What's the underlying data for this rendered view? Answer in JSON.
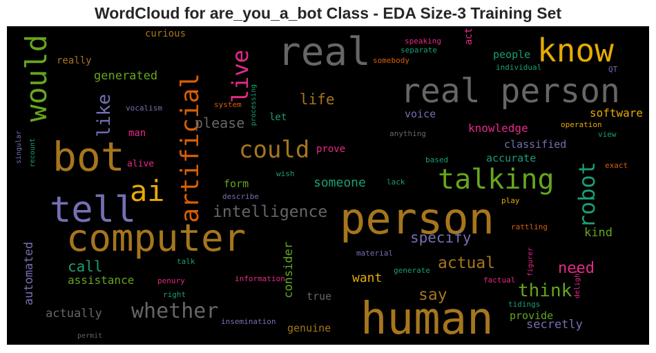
{
  "chart_data": {
    "type": "wordcloud",
    "title": "WordCloud for are_you_a_bot Class - EDA Size-3 Training Set",
    "colors": {
      "gray": "#666666",
      "gold": "#a6761d",
      "amber": "#e6ab02",
      "green": "#66a61e",
      "orange": "#d95f02",
      "teal": "#1b9e77",
      "magenta": "#e7298a",
      "purple": "#7570b3"
    },
    "words": [
      {
        "text": "human",
        "color": "gold",
        "weight": 64
      },
      {
        "text": "person",
        "color": "gold",
        "weight": 62
      },
      {
        "text": "computer",
        "color": "gold",
        "weight": 54
      },
      {
        "text": "bot",
        "color": "gold",
        "weight": 58
      },
      {
        "text": "real",
        "color": "gray",
        "weight": 56
      },
      {
        "text": "real person",
        "color": "gray",
        "weight": 48
      },
      {
        "text": "tell",
        "color": "purple",
        "weight": 52
      },
      {
        "text": "know",
        "color": "amber",
        "weight": 46
      },
      {
        "text": "ai",
        "color": "amber",
        "weight": 42
      },
      {
        "text": "talking",
        "color": "green",
        "weight": 40
      },
      {
        "text": "would",
        "color": "green",
        "weight": 42,
        "rotate": true
      },
      {
        "text": "artificial",
        "color": "orange",
        "weight": 36,
        "rotate": true
      },
      {
        "text": "could",
        "color": "gold",
        "weight": 34
      },
      {
        "text": "robot",
        "color": "teal",
        "weight": 32,
        "rotate": true
      },
      {
        "text": "live",
        "color": "magenta",
        "weight": 32,
        "rotate": true
      },
      {
        "text": "whether",
        "color": "gray",
        "weight": 30
      },
      {
        "text": "think",
        "color": "green",
        "weight": 26
      },
      {
        "text": "like",
        "color": "purple",
        "weight": 26,
        "rotate": true
      },
      {
        "text": "intelligence",
        "color": "gray",
        "weight": 23
      },
      {
        "text": "actual",
        "color": "gold",
        "weight": 23
      },
      {
        "text": "say",
        "color": "gold",
        "weight": 23
      },
      {
        "text": "need",
        "color": "magenta",
        "weight": 22
      },
      {
        "text": "specify",
        "color": "purple",
        "weight": 21
      },
      {
        "text": "call",
        "color": "teal",
        "weight": 21
      },
      {
        "text": "life",
        "color": "gold",
        "weight": 21
      },
      {
        "text": "please",
        "color": "gray",
        "weight": 20
      },
      {
        "text": "someone",
        "color": "teal",
        "weight": 18
      },
      {
        "text": "consider",
        "color": "green",
        "weight": 17,
        "rotate": true
      },
      {
        "text": "want",
        "color": "amber",
        "weight": 18
      },
      {
        "text": "automated",
        "color": "purple",
        "weight": 17,
        "rotate": true
      },
      {
        "text": "actually",
        "color": "gray",
        "weight": 17
      },
      {
        "text": "secretly",
        "color": "purple",
        "weight": 17
      },
      {
        "text": "generated",
        "color": "green",
        "weight": 17
      },
      {
        "text": "software",
        "color": "amber",
        "weight": 16
      },
      {
        "text": "kind",
        "color": "green",
        "weight": 17
      },
      {
        "text": "knowledge",
        "color": "magenta",
        "weight": 16
      },
      {
        "text": "assistance",
        "color": "green",
        "weight": 16
      },
      {
        "text": "people",
        "color": "teal",
        "weight": 15
      },
      {
        "text": "accurate",
        "color": "teal",
        "weight": 15
      },
      {
        "text": "classified",
        "color": "purple",
        "weight": 15
      },
      {
        "text": "provide",
        "color": "green",
        "weight": 15
      },
      {
        "text": "genuine",
        "color": "gold",
        "weight": 15
      },
      {
        "text": "form",
        "color": "green",
        "weight": 15
      },
      {
        "text": "true",
        "color": "gray",
        "weight": 15
      },
      {
        "text": "voice",
        "color": "purple",
        "weight": 15
      },
      {
        "text": "really",
        "color": "gold",
        "weight": 14
      },
      {
        "text": "curious",
        "color": "gold",
        "weight": 14
      },
      {
        "text": "man",
        "color": "magenta",
        "weight": 14
      },
      {
        "text": "let",
        "color": "teal",
        "weight": 14
      },
      {
        "text": "prove",
        "color": "magenta",
        "weight": 14
      },
      {
        "text": "act",
        "color": "magenta",
        "weight": 14,
        "rotate": true
      },
      {
        "text": "alive",
        "color": "magenta",
        "weight": 13
      },
      {
        "text": "speaking",
        "color": "magenta",
        "weight": 11
      },
      {
        "text": "separate",
        "color": "teal",
        "weight": 11
      },
      {
        "text": "somebody",
        "color": "orange",
        "weight": 11
      },
      {
        "text": "individual",
        "color": "teal",
        "weight": 11
      },
      {
        "text": "QT",
        "color": "purple",
        "weight": 11
      },
      {
        "text": "vocalism",
        "color": "purple",
        "weight": 11
      },
      {
        "text": "system",
        "color": "orange",
        "weight": 11
      },
      {
        "text": "processing",
        "color": "teal",
        "weight": 10,
        "rotate": true
      },
      {
        "text": "operation",
        "color": "amber",
        "weight": 11
      },
      {
        "text": "view",
        "color": "teal",
        "weight": 11
      },
      {
        "text": "anything",
        "color": "gray",
        "weight": 11
      },
      {
        "text": "singular",
        "color": "purple",
        "weight": 10,
        "rotate": true
      },
      {
        "text": "recount",
        "color": "teal",
        "weight": 10,
        "rotate": true
      },
      {
        "text": "based",
        "color": "teal",
        "weight": 11
      },
      {
        "text": "exact",
        "color": "orange",
        "weight": 11
      },
      {
        "text": "wish",
        "color": "teal",
        "weight": 11
      },
      {
        "text": "lack",
        "color": "teal",
        "weight": 11
      },
      {
        "text": "describe",
        "color": "purple",
        "weight": 11
      },
      {
        "text": "play",
        "color": "amber",
        "weight": 11
      },
      {
        "text": "rattling",
        "color": "orange",
        "weight": 11
      },
      {
        "text": "material",
        "color": "purple",
        "weight": 11
      },
      {
        "text": "talk",
        "color": "teal",
        "weight": 11
      },
      {
        "text": "generate",
        "color": "teal",
        "weight": 11
      },
      {
        "text": "figurer",
        "color": "magenta",
        "weight": 10,
        "rotate": true
      },
      {
        "text": "penury",
        "color": "magenta",
        "weight": 11
      },
      {
        "text": "information",
        "color": "magenta",
        "weight": 11
      },
      {
        "text": "factual",
        "color": "magenta",
        "weight": 11
      },
      {
        "text": "delight",
        "color": "magenta",
        "weight": 10,
        "rotate": true
      },
      {
        "text": "right",
        "color": "teal",
        "weight": 11
      },
      {
        "text": "tidings",
        "color": "teal",
        "weight": 11
      },
      {
        "text": "insemination",
        "color": "purple",
        "weight": 11
      },
      {
        "text": "permit",
        "color": "gray",
        "weight": 10
      }
    ]
  }
}
